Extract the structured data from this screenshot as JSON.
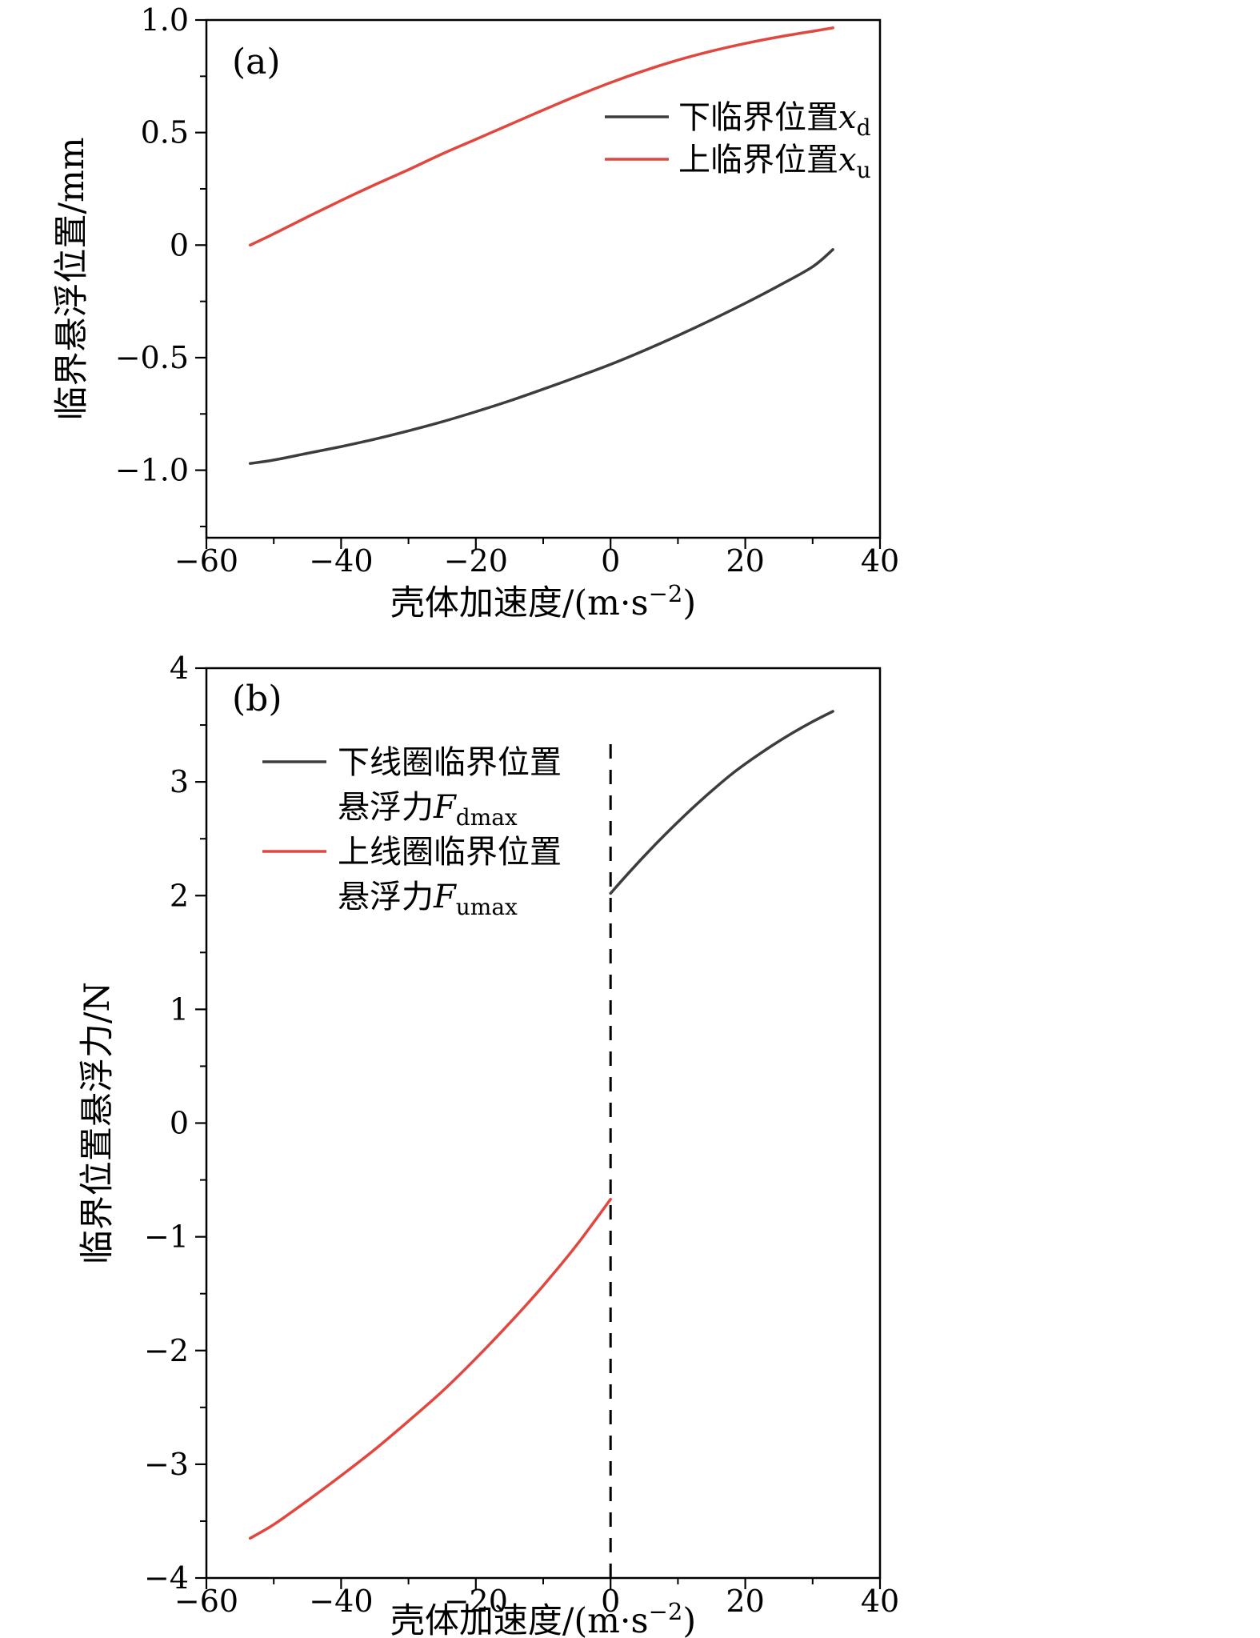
{
  "figure": {
    "background": "#ffffff",
    "panels": [
      "(a)",
      "(b)"
    ]
  },
  "colors": {
    "axis": "#000000",
    "black_series": "#3d3d3d",
    "red_series": "#e2473f"
  },
  "chart_data": [
    {
      "id": "a",
      "type": "line",
      "panel_label": "(a)",
      "xlabel": "壳体加速度/(m·s⁻²)",
      "xlabel_parts": {
        "prefix": "壳体加速度/(m·s",
        "sup": "−2",
        "suffix": ")"
      },
      "ylabel": "临界悬浮位置/mm",
      "xlim": [
        -60,
        40
      ],
      "ylim": [
        -1.3,
        1.0
      ],
      "xticks": [
        -60,
        -40,
        -20,
        0,
        20,
        40
      ],
      "xtick_labels": [
        "−60",
        "−40",
        "−20",
        "0",
        "20",
        "40"
      ],
      "yticks": [
        -1.0,
        -0.5,
        0,
        0.5,
        1.0
      ],
      "ytick_labels": [
        "−1.0",
        "−0.5",
        "0",
        "0.5",
        "1.0"
      ],
      "x_minor_step": 10,
      "y_minor_step": 0.25,
      "grid": false,
      "legend_position": "upper-right",
      "series": [
        {
          "name": "下临界位置xd",
          "legend": {
            "label": "下临界位置",
            "math": "x",
            "sub": "d"
          },
          "color": "#3d3d3d",
          "x": [
            -53.5,
            -50,
            -45,
            -40,
            -35,
            -30,
            -25,
            -20,
            -15,
            -10,
            -5,
            0,
            5,
            10,
            15,
            20,
            25,
            30,
            33
          ],
          "y": [
            -0.97,
            -0.955,
            -0.925,
            -0.895,
            -0.862,
            -0.825,
            -0.785,
            -0.74,
            -0.692,
            -0.64,
            -0.586,
            -0.53,
            -0.468,
            -0.402,
            -0.332,
            -0.258,
            -0.18,
            -0.096,
            -0.02
          ]
        },
        {
          "name": "上临界位置xu",
          "legend": {
            "label": "上临界位置",
            "math": "x",
            "sub": "u"
          },
          "color": "#e2473f",
          "x": [
            -53.5,
            -50,
            -45,
            -40,
            -35,
            -30,
            -25,
            -20,
            -15,
            -10,
            -5,
            0,
            5,
            10,
            15,
            20,
            25,
            30,
            33
          ],
          "y": [
            0.0,
            0.05,
            0.125,
            0.198,
            0.268,
            0.335,
            0.405,
            0.47,
            0.535,
            0.6,
            0.663,
            0.722,
            0.775,
            0.822,
            0.862,
            0.896,
            0.925,
            0.95,
            0.965
          ]
        }
      ]
    },
    {
      "id": "b",
      "type": "line",
      "panel_label": "(b)",
      "xlabel": "壳体加速度/(m·s⁻²)",
      "xlabel_parts": {
        "prefix": "壳体加速度/(m·s",
        "sup": "−2",
        "suffix": ")"
      },
      "ylabel": "临界位置悬浮力/N",
      "xlim": [
        -60,
        40
      ],
      "ylim": [
        -4,
        4
      ],
      "xticks": [
        -60,
        -40,
        -20,
        0,
        20,
        40
      ],
      "xtick_labels": [
        "−60",
        "−40",
        "−20",
        "0",
        "20",
        "40"
      ],
      "yticks": [
        -4,
        -3,
        -2,
        -1,
        0,
        1,
        2,
        3,
        4
      ],
      "ytick_labels": [
        "−4",
        "−3",
        "−2",
        "−1",
        "0",
        "1",
        "2",
        "3",
        "4"
      ],
      "x_minor_step": 10,
      "y_minor_step": 0.5,
      "grid": false,
      "legend_position": "center-left",
      "vline": {
        "x": 0,
        "y_from": -4,
        "y_to": 3.35,
        "style": "dashed",
        "color": "#000000"
      },
      "series": [
        {
          "name": "下线圈临界位置悬浮力Fdmax",
          "legend": {
            "line1": "下线圈临界位置",
            "line2": "悬浮力",
            "math": "F",
            "sub": "dmax"
          },
          "color": "#3d3d3d",
          "x": [
            0,
            3,
            6,
            9,
            12,
            15,
            18,
            21,
            24,
            27,
            30,
            33
          ],
          "y": [
            2.02,
            2.22,
            2.41,
            2.59,
            2.76,
            2.92,
            3.07,
            3.2,
            3.32,
            3.43,
            3.53,
            3.62
          ]
        },
        {
          "name": "上线圈临界位置悬浮力Fumax",
          "legend": {
            "line1": "上线圈临界位置",
            "line2": "悬浮力",
            "math": "F",
            "sub": "umax"
          },
          "color": "#e2473f",
          "x": [
            -53.5,
            -50,
            -45,
            -40,
            -35,
            -30,
            -25,
            -20,
            -15,
            -10,
            -5,
            0
          ],
          "y": [
            -3.65,
            -3.53,
            -3.32,
            -3.1,
            -2.87,
            -2.62,
            -2.36,
            -2.07,
            -1.76,
            -1.43,
            -1.07,
            -0.67
          ]
        }
      ]
    }
  ]
}
